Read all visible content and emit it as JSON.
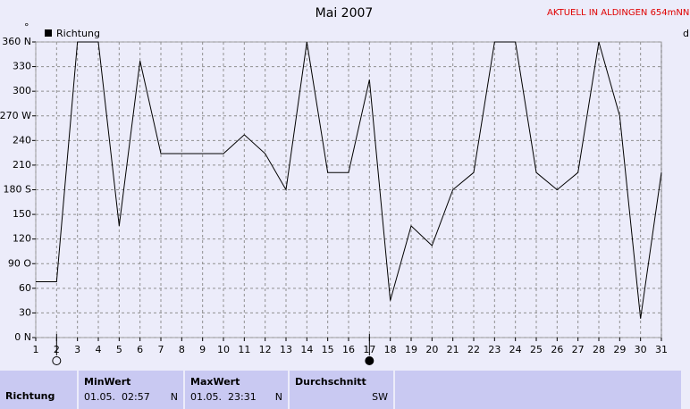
{
  "chart_data": {
    "type": "line",
    "title": "Mai 2007",
    "subtitle": "AKTUELL IN ALDINGEN 654mNN",
    "y_unit": "°",
    "x_unit": "d",
    "x": [
      1,
      2,
      3,
      4,
      5,
      6,
      7,
      8,
      9,
      10,
      11,
      12,
      13,
      14,
      15,
      16,
      17,
      18,
      19,
      20,
      21,
      22,
      23,
      24,
      25,
      26,
      27,
      28,
      29,
      30,
      31
    ],
    "series": [
      {
        "name": "Richtung",
        "color": "#000000",
        "values": [
          68,
          68,
          360,
          360,
          136,
          337,
          224,
          224,
          224,
          224,
          247,
          224,
          180,
          360,
          201,
          201,
          314,
          45,
          136,
          112,
          180,
          201,
          360,
          360,
          201,
          180,
          201,
          360,
          270,
          23,
          201
        ]
      }
    ],
    "xlim": [
      1,
      31
    ],
    "xticks": [
      1,
      2,
      3,
      4,
      5,
      6,
      7,
      8,
      9,
      10,
      11,
      12,
      13,
      14,
      15,
      16,
      17,
      18,
      19,
      20,
      21,
      22,
      23,
      24,
      25,
      26,
      27,
      28,
      29,
      30,
      31
    ],
    "ylim": [
      0,
      360
    ],
    "yticks": [
      {
        "value": 0,
        "label": "0 N"
      },
      30,
      60,
      {
        "value": 90,
        "label": "90 O"
      },
      120,
      150,
      {
        "value": 180,
        "label": "180 S"
      },
      210,
      240,
      {
        "value": 270,
        "label": "270 W"
      },
      300,
      330,
      {
        "value": 360,
        "label": "360 N"
      }
    ],
    "grid": true,
    "moon_x": [
      2,
      17
    ],
    "moon_fills": [
      "none",
      "#000000"
    ]
  },
  "summary": {
    "row_label": "Richtung",
    "columns": [
      {
        "title": "MinWert",
        "date": "01.05.",
        "time": "02:57",
        "value": "N"
      },
      {
        "title": "MaxWert",
        "date": "01.05.",
        "time": "23:31",
        "value": "N"
      },
      {
        "title": "Durchschnitt",
        "value": "SW"
      }
    ]
  }
}
